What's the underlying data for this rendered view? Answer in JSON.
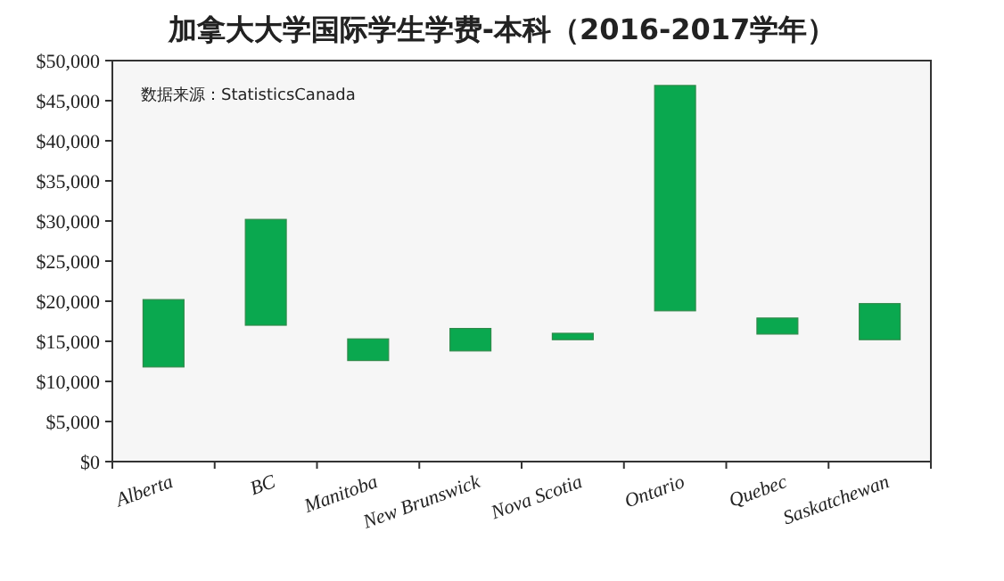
{
  "chart_data": {
    "type": "bar",
    "title": "加拿大大学国际学生学费-本科（2016-2017学年）",
    "categories": [
      "Alberta",
      "BC",
      "Manitoba",
      "New Brunswick",
      "Nova Scotia",
      "Ontario",
      "Quebec",
      "Saskatchewan"
    ],
    "base": [
      11800,
      17000,
      12600,
      13800,
      15200,
      18800,
      15900,
      15200
    ],
    "values": [
      8400,
      13200,
      2700,
      2800,
      800,
      28100,
      2000,
      4500
    ],
    "color": "#0aa84f",
    "ylim": [
      0,
      50000
    ],
    "yticks": [
      {
        "value": 0,
        "label": "$0"
      },
      {
        "value": 5000,
        "label": "$5,000"
      },
      {
        "value": 10000,
        "label": "$10,000"
      },
      {
        "value": 15000,
        "label": "$15,000"
      },
      {
        "value": 20000,
        "label": "$20,000"
      },
      {
        "value": 25000,
        "label": "$25,000"
      },
      {
        "value": 30000,
        "label": "$30,000"
      },
      {
        "value": 35000,
        "label": "$35,000"
      },
      {
        "value": 40000,
        "label": "$40,000"
      },
      {
        "value": 45000,
        "label": "$45,000"
      },
      {
        "value": 50000,
        "label": "$50,000"
      }
    ],
    "grid": false,
    "annotations": [
      "数据来源：StatisticsCanada"
    ]
  }
}
